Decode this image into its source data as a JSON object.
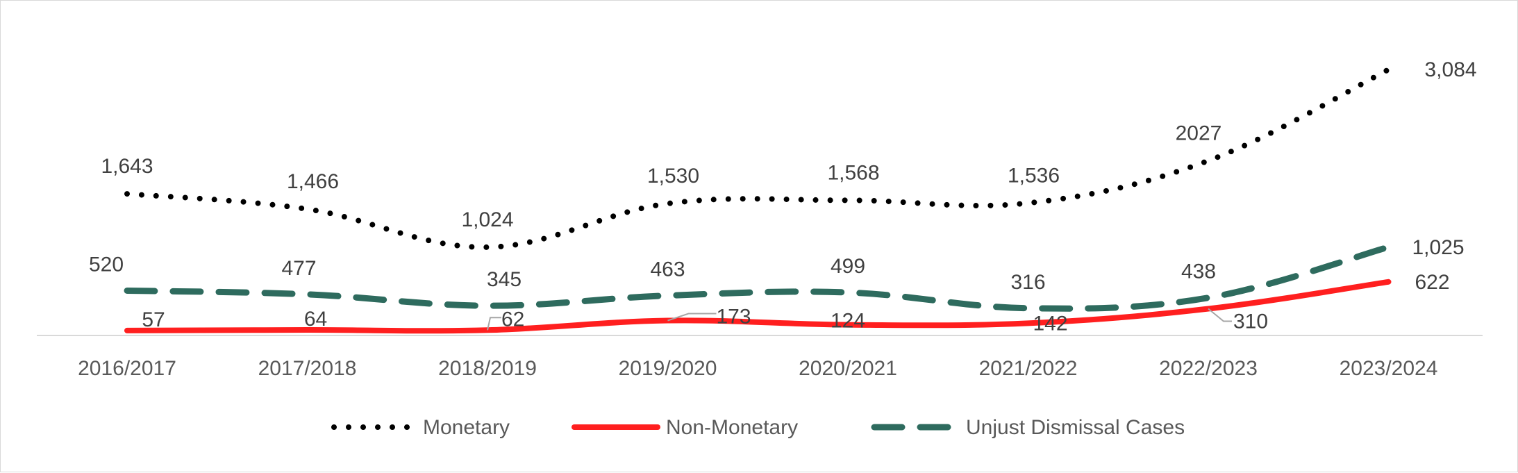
{
  "chart_data": {
    "type": "line",
    "title": "",
    "xlabel": "",
    "ylabel": "",
    "categories": [
      "2016/2017",
      "2017/2018",
      "2018/2019",
      "2019/2020",
      "2020/2021",
      "2021/2022",
      "2022/2023",
      "2023/2024"
    ],
    "series": [
      {
        "name": "Monetary",
        "values": [
          1643,
          1466,
          1024,
          1530,
          1568,
          1536,
          2027,
          3084
        ],
        "labels": [
          "1,643",
          "1,466",
          "1,024",
          "1,530",
          "1,568",
          "1,536",
          "2027",
          "3,084"
        ],
        "color": "#000000",
        "style": "dotted"
      },
      {
        "name": "Non-Monetary",
        "values": [
          57,
          64,
          62,
          173,
          124,
          142,
          310,
          622
        ],
        "labels": [
          "57",
          "64",
          "62",
          "173",
          "124",
          "142",
          "310",
          "622"
        ],
        "color": "#ff1f1f",
        "style": "solid"
      },
      {
        "name": "Unjust Dismissal Cases",
        "values": [
          520,
          477,
          345,
          463,
          499,
          316,
          438,
          1025
        ],
        "labels": [
          "520",
          "477",
          "345",
          "463",
          "499",
          "316",
          "438",
          "1,025"
        ],
        "color": "#2e6b5e",
        "style": "dashed"
      }
    ],
    "legend_position": "bottom",
    "grid": false,
    "ylim": [
      0,
      3400
    ]
  }
}
